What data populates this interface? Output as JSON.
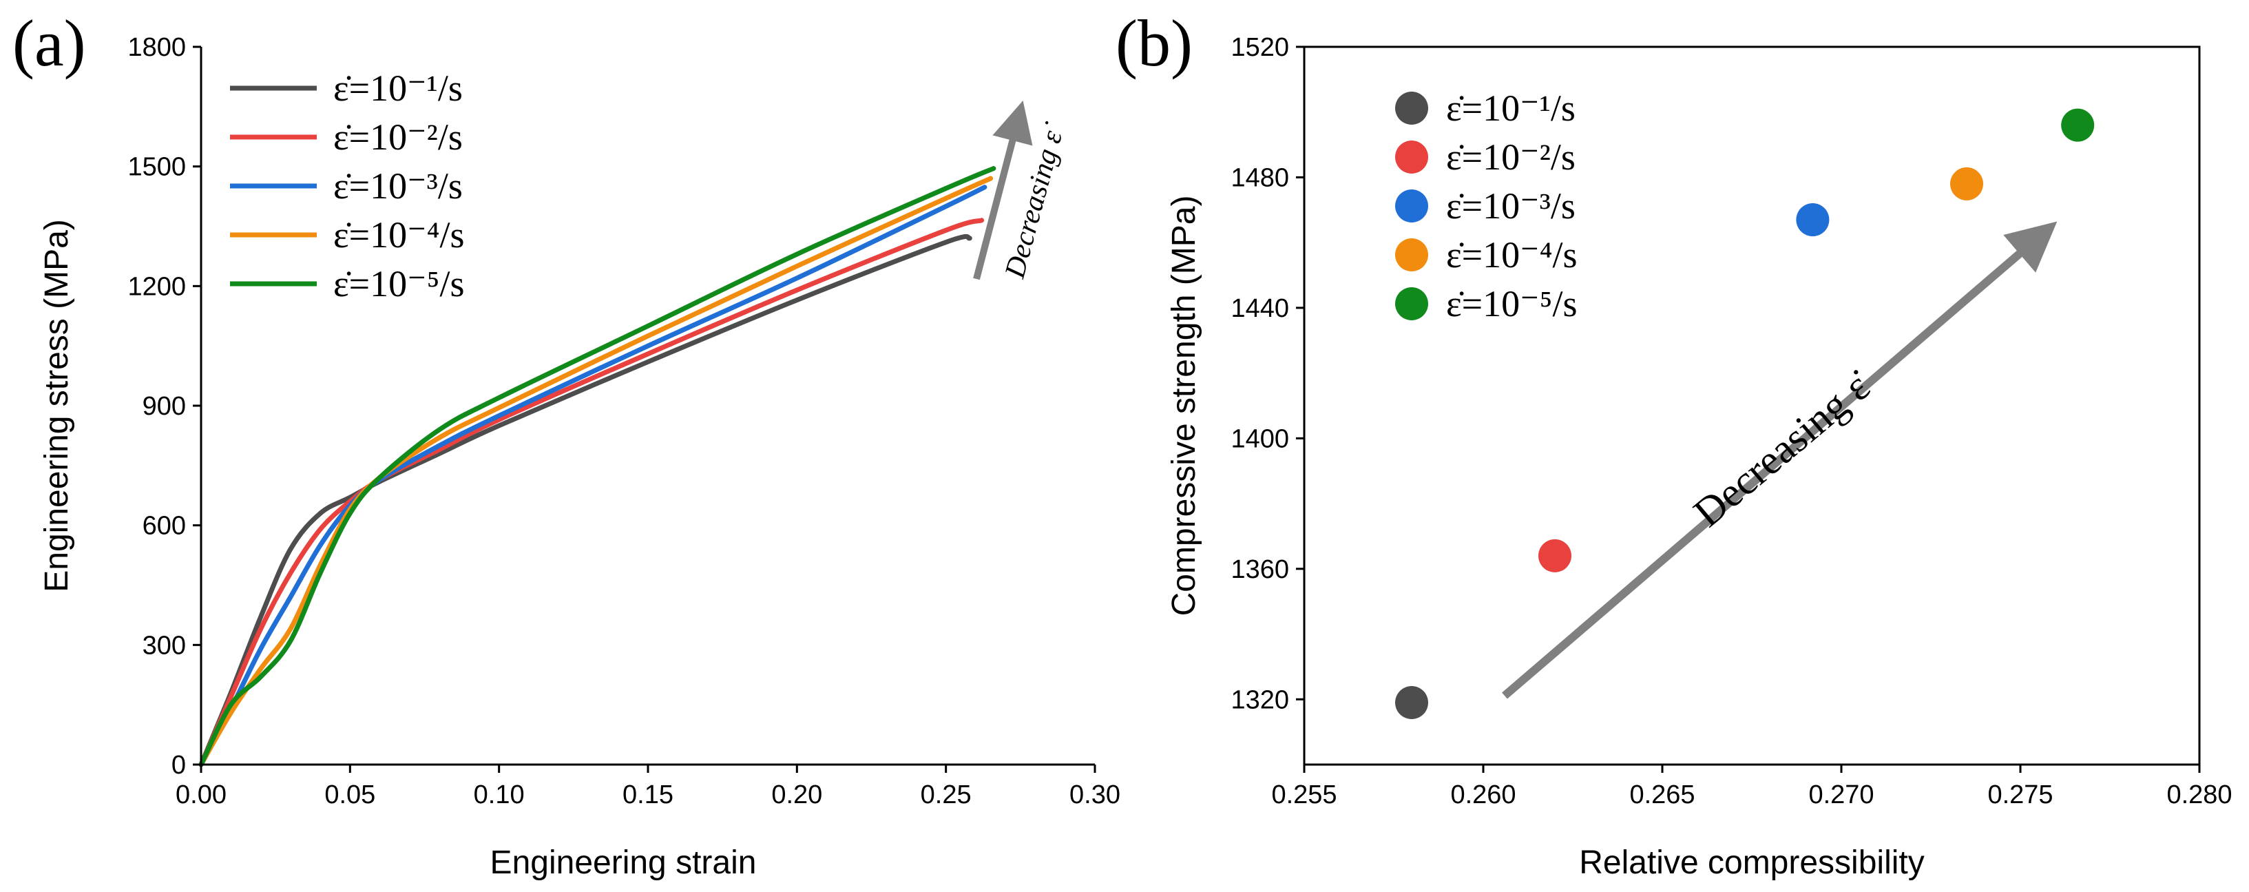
{
  "panels": {
    "a": {
      "label": "(a)"
    },
    "b": {
      "label": "(b)"
    }
  },
  "legend_entries": [
    {
      "text": "ε̇=10⁻¹/s",
      "color": "#4d4d4d"
    },
    {
      "text": "ε̇=10⁻²/s",
      "color": "#e8413e"
    },
    {
      "text": "ε̇=10⁻³/s",
      "color": "#1f6fd6"
    },
    {
      "text": "ε̇=10⁻⁴/s",
      "color": "#f28c0f"
    },
    {
      "text": "ε̇=10⁻⁵/s",
      "color": "#108a1a"
    }
  ],
  "annotations": {
    "a_arrow_text": "Decreasing ε̇",
    "b_arrow_text": "Decreasing ε̇",
    "arrow_color": "#808080"
  },
  "chart_data": [
    {
      "type": "line",
      "xlabel": "Engineering strain",
      "ylabel": "Engineering stress (MPa)",
      "xlim": [
        0,
        0.3
      ],
      "ylim": [
        0,
        1800
      ],
      "xticks": [
        "0.00",
        "0.05",
        "0.10",
        "0.15",
        "0.20",
        "0.25",
        "0.30"
      ],
      "yticks": [
        "0",
        "300",
        "600",
        "900",
        "1200",
        "1500",
        "1800"
      ],
      "grid": false,
      "legend": "top-left",
      "series": [
        {
          "name": "ε̇=10⁻¹/s",
          "color": "#4d4d4d",
          "x": [
            0,
            0.01,
            0.02,
            0.03,
            0.04,
            0.05,
            0.06,
            0.08,
            0.1,
            0.15,
            0.2,
            0.25,
            0.258
          ],
          "y": [
            0,
            180,
            370,
            540,
            630,
            670,
            710,
            780,
            850,
            1010,
            1165,
            1310,
            1320
          ]
        },
        {
          "name": "ε̇=10⁻²/s",
          "color": "#e8413e",
          "x": [
            0,
            0.01,
            0.02,
            0.03,
            0.04,
            0.05,
            0.06,
            0.08,
            0.1,
            0.15,
            0.2,
            0.25,
            0.262
          ],
          "y": [
            0,
            170,
            340,
            480,
            590,
            660,
            715,
            790,
            865,
            1030,
            1190,
            1340,
            1365
          ]
        },
        {
          "name": "ε̇=10⁻³/s",
          "color": "#1f6fd6",
          "x": [
            0,
            0.01,
            0.02,
            0.03,
            0.04,
            0.05,
            0.06,
            0.08,
            0.1,
            0.15,
            0.2,
            0.25,
            0.263
          ],
          "y": [
            0,
            140,
            290,
            420,
            550,
            650,
            715,
            800,
            875,
            1050,
            1220,
            1400,
            1448
          ]
        },
        {
          "name": "ε̇=10⁻⁴/s",
          "color": "#f28c0f",
          "x": [
            0,
            0.01,
            0.02,
            0.03,
            0.04,
            0.05,
            0.06,
            0.08,
            0.1,
            0.15,
            0.2,
            0.25,
            0.265
          ],
          "y": [
            0,
            130,
            240,
            340,
            500,
            640,
            720,
            820,
            895,
            1075,
            1250,
            1420,
            1470
          ]
        },
        {
          "name": "ε̇=10⁻⁵/s",
          "color": "#108a1a",
          "x": [
            0,
            0.01,
            0.02,
            0.03,
            0.04,
            0.05,
            0.06,
            0.08,
            0.1,
            0.15,
            0.2,
            0.25,
            0.266
          ],
          "y": [
            0,
            150,
            220,
            310,
            480,
            630,
            720,
            840,
            920,
            1100,
            1280,
            1445,
            1495
          ]
        }
      ]
    },
    {
      "type": "scatter",
      "xlabel": "Relative compressibility",
      "ylabel": "Compressive strength (MPa)",
      "xlim": [
        0.255,
        0.28
      ],
      "ylim": [
        1300,
        1520
      ],
      "xticks": [
        "0.255",
        "0.260",
        "0.265",
        "0.270",
        "0.275",
        "0.280"
      ],
      "yticks": [
        "1320",
        "1360",
        "1400",
        "1440",
        "1480",
        "1520"
      ],
      "grid": false,
      "legend": "top-left",
      "series": [
        {
          "name": "ε̇=10⁻¹/s",
          "color": "#4d4d4d",
          "x": [
            0.258
          ],
          "y": [
            1319
          ]
        },
        {
          "name": "ε̇=10⁻²/s",
          "color": "#e8413e",
          "x": [
            0.262
          ],
          "y": [
            1364
          ]
        },
        {
          "name": "ε̇=10⁻³/s",
          "color": "#1f6fd6",
          "x": [
            0.2692
          ],
          "y": [
            1467
          ]
        },
        {
          "name": "ε̇=10⁻⁴/s",
          "color": "#f28c0f",
          "x": [
            0.2735
          ],
          "y": [
            1478
          ]
        },
        {
          "name": "ε̇=10⁻⁵/s",
          "color": "#108a1a",
          "x": [
            0.2766
          ],
          "y": [
            1496
          ]
        }
      ]
    }
  ]
}
